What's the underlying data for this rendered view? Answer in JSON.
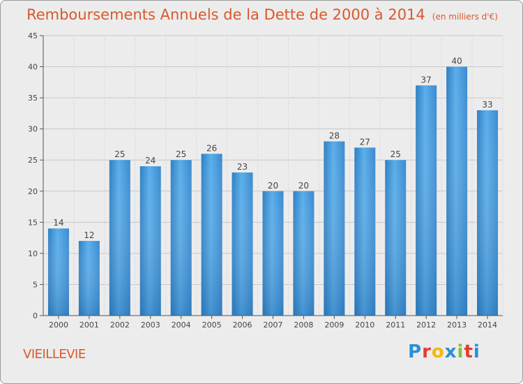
{
  "chart_data": {
    "type": "bar",
    "title": "Remboursements Annuels de la Dette de 2000 à 2014",
    "subtitle": "(en milliers d'€)",
    "categories": [
      "2000",
      "2001",
      "2002",
      "2003",
      "2004",
      "2005",
      "2006",
      "2007",
      "2008",
      "2009",
      "2010",
      "2011",
      "2012",
      "2013",
      "2014"
    ],
    "values": [
      14,
      12,
      25,
      24,
      25,
      26,
      23,
      20,
      20,
      28,
      27,
      25,
      37,
      40,
      33
    ],
    "ylim": [
      0,
      45
    ],
    "yticks": [
      0,
      5,
      10,
      15,
      20,
      25,
      30,
      35,
      40,
      45
    ],
    "xlabel": "",
    "ylabel": "",
    "grid": true,
    "bar_color": "#3b8fd6"
  },
  "commune": "VIEILLEVIE",
  "brand": {
    "letters": [
      "P",
      "r",
      "o",
      "x",
      "i",
      "t",
      "i"
    ],
    "colors": [
      "#2a8fd6",
      "#e63c2f",
      "#f5b800",
      "#2a8fd6",
      "#7cc242",
      "#e63c2f",
      "#2a8fd6"
    ]
  }
}
